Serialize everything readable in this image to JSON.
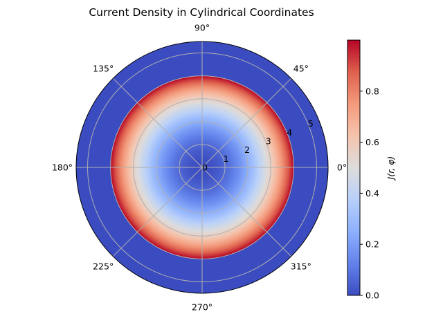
{
  "chart_data": {
    "type": "heatmap",
    "projection": "polar",
    "title": "Current Density in Cylindrical Coordinates",
    "angular_ticks": [
      "0°",
      "45°",
      "90°",
      "135°",
      "180°",
      "225°",
      "270°",
      "315°"
    ],
    "angular_tick_values_deg": [
      0,
      45,
      90,
      135,
      180,
      225,
      270,
      315
    ],
    "radial_ticks": [
      "0",
      "1",
      "2",
      "3",
      "4",
      "5"
    ],
    "radial_tick_values": [
      0,
      1,
      2,
      3,
      4,
      5
    ],
    "rlim": [
      0,
      5.5
    ],
    "grid": true,
    "field": {
      "description_formula": "J = (r/4)^2 for r <= 4, else 0; independent of phi",
      "r_cutoff": 4,
      "max_value": 1.0
    },
    "colorbar": {
      "label": "J(r, φ)",
      "colormap": "coolwarm",
      "range": [
        0,
        1.0
      ],
      "ticks": [
        "0.0",
        "0.2",
        "0.4",
        "0.6",
        "0.8"
      ],
      "tick_values": [
        0.0,
        0.2,
        0.4,
        0.6,
        0.8
      ]
    }
  }
}
